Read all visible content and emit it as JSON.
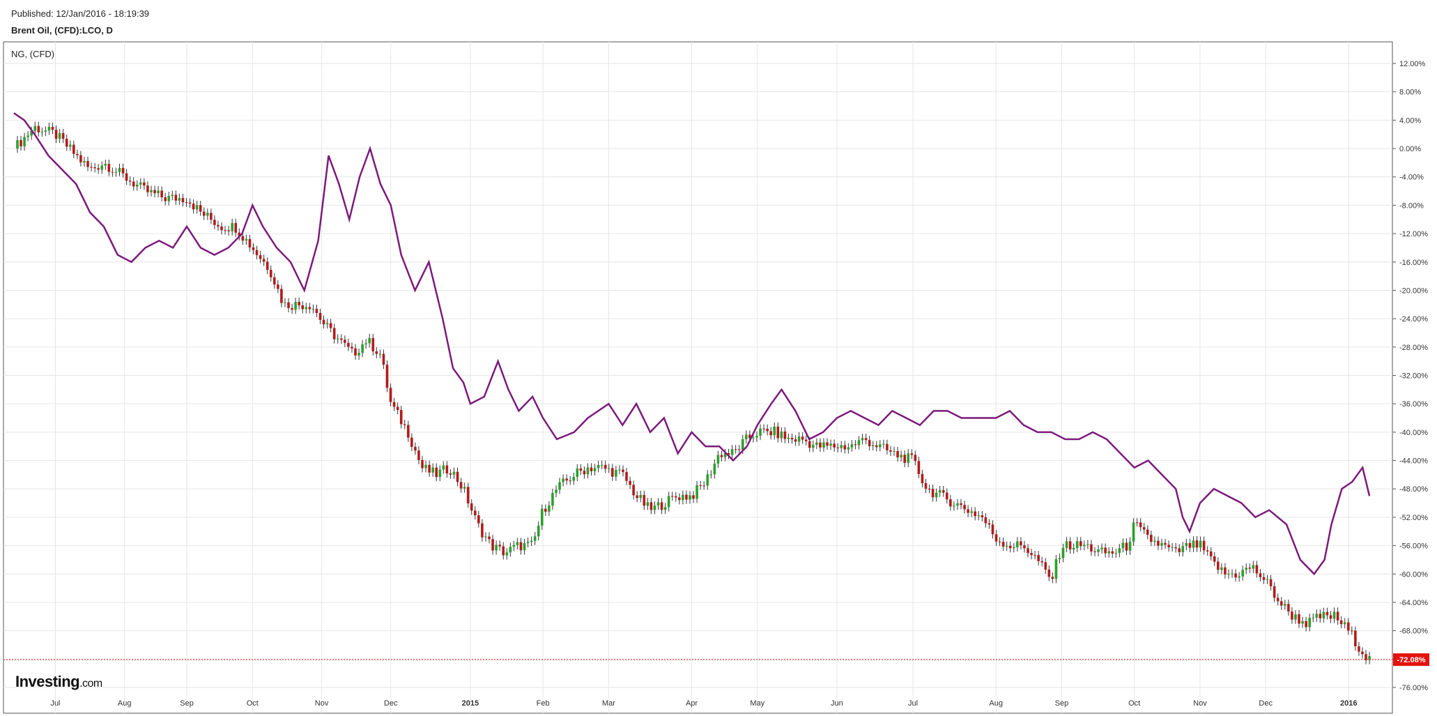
{
  "header": {
    "published": "Published: 12/Jan/2016 - 18:19:39",
    "title": "Brent Oil, (CFD):LCO, D"
  },
  "legend": {
    "overlay_label": "NG,  (CFD)"
  },
  "logo": {
    "brand": "Investing",
    "suffix": ".com"
  },
  "chart_data": {
    "type": "line",
    "title": "Brent Oil, (CFD):LCO, D",
    "ylabel": "",
    "ylim": [
      -78,
      14
    ],
    "y_ticks": [
      "12.00%",
      "8.00%",
      "4.00%",
      "0.00%",
      "-4.00%",
      "-8.00%",
      "-12.00%",
      "-16.00%",
      "-20.00%",
      "-24.00%",
      "-28.00%",
      "-32.00%",
      "-36.00%",
      "-40.00%",
      "-44.00%",
      "-48.00%",
      "-52.00%",
      "-56.00%",
      "-60.00%",
      "-64.00%",
      "-68.00%",
      "-72.00%",
      "-76.00%"
    ],
    "y_tick_values": [
      12,
      8,
      4,
      0,
      -4,
      -8,
      -12,
      -16,
      -20,
      -24,
      -28,
      -32,
      -36,
      -40,
      -44,
      -48,
      -52,
      -56,
      -60,
      -64,
      -68,
      -72,
      -76
    ],
    "x_ticks": [
      "Jul",
      "Aug",
      "Sep",
      "Oct",
      "Nov",
      "Dec",
      "2015",
      "Feb",
      "Mar",
      "Apr",
      "May",
      "Jun",
      "Jul",
      "Aug",
      "Sep",
      "Oct",
      "Nov",
      "Dec",
      "2016"
    ],
    "x_tick_months": [
      0.6,
      1.6,
      2.5,
      3.45,
      4.45,
      5.45,
      6.6,
      7.65,
      8.6,
      9.8,
      10.75,
      11.9,
      13.0,
      14.2,
      15.15,
      16.2,
      17.15,
      18.1,
      19.3
    ],
    "x_range_months": [
      -0.1,
      19.7
    ],
    "current_value_label": "-72.08%",
    "current_value": -72.08,
    "colors": {
      "brent_up": "#2ca02c",
      "brent_down": "#b31b1b",
      "ng_line": "#7b1a7b",
      "current_marker": "#e3120b",
      "grid": "#e6e6e6"
    },
    "series": [
      {
        "name": "Brent Oil",
        "kind": "candlestick",
        "points": [
          [
            0,
            0
          ],
          [
            0.3,
            3
          ],
          [
            0.6,
            2
          ],
          [
            0.9,
            -1
          ],
          [
            1.1,
            -3
          ],
          [
            1.3,
            -2
          ],
          [
            1.6,
            -4
          ],
          [
            1.9,
            -6
          ],
          [
            2.2,
            -7
          ],
          [
            2.5,
            -7
          ],
          [
            2.7,
            -9
          ],
          [
            3.0,
            -11
          ],
          [
            3.2,
            -11
          ],
          [
            3.45,
            -14
          ],
          [
            3.7,
            -17
          ],
          [
            3.9,
            -22
          ],
          [
            4.1,
            -22
          ],
          [
            4.3,
            -22
          ],
          [
            4.5,
            -25
          ],
          [
            4.7,
            -27
          ],
          [
            4.9,
            -29
          ],
          [
            5.1,
            -27
          ],
          [
            5.3,
            -29
          ],
          [
            5.45,
            -36
          ],
          [
            5.7,
            -40
          ],
          [
            5.9,
            -45
          ],
          [
            6.1,
            -46
          ],
          [
            6.3,
            -45
          ],
          [
            6.5,
            -48
          ],
          [
            6.7,
            -53
          ],
          [
            6.9,
            -56
          ],
          [
            7.1,
            -57
          ],
          [
            7.3,
            -56
          ],
          [
            7.5,
            -56
          ],
          [
            7.65,
            -51
          ],
          [
            7.85,
            -48
          ],
          [
            8.1,
            -46
          ],
          [
            8.3,
            -45
          ],
          [
            8.5,
            -45
          ],
          [
            8.8,
            -46
          ],
          [
            9.0,
            -49
          ],
          [
            9.2,
            -51
          ],
          [
            9.4,
            -50
          ],
          [
            9.6,
            -49
          ],
          [
            9.8,
            -49
          ],
          [
            10.0,
            -47
          ],
          [
            10.2,
            -43
          ],
          [
            10.4,
            -43
          ],
          [
            10.6,
            -41
          ],
          [
            10.75,
            -40
          ],
          [
            11.0,
            -40
          ],
          [
            11.2,
            -41
          ],
          [
            11.4,
            -41
          ],
          [
            11.6,
            -42
          ],
          [
            11.9,
            -42
          ],
          [
            12.1,
            -42
          ],
          [
            12.3,
            -41
          ],
          [
            12.5,
            -42
          ],
          [
            12.7,
            -43
          ],
          [
            13.0,
            -44
          ],
          [
            13.2,
            -48
          ],
          [
            13.4,
            -49
          ],
          [
            13.6,
            -50
          ],
          [
            13.8,
            -51
          ],
          [
            14.0,
            -52
          ],
          [
            14.2,
            -55
          ],
          [
            14.4,
            -56
          ],
          [
            14.6,
            -56
          ],
          [
            14.8,
            -58
          ],
          [
            15.0,
            -61
          ],
          [
            15.15,
            -56
          ],
          [
            15.35,
            -56
          ],
          [
            15.5,
            -56
          ],
          [
            15.7,
            -57
          ],
          [
            15.9,
            -57
          ],
          [
            16.1,
            -56
          ],
          [
            16.2,
            -53
          ],
          [
            16.4,
            -55
          ],
          [
            16.6,
            -56
          ],
          [
            16.8,
            -57
          ],
          [
            17.0,
            -56
          ],
          [
            17.15,
            -56
          ],
          [
            17.3,
            -58
          ],
          [
            17.5,
            -60
          ],
          [
            17.7,
            -60
          ],
          [
            17.9,
            -59
          ],
          [
            18.1,
            -61
          ],
          [
            18.3,
            -64
          ],
          [
            18.5,
            -66
          ],
          [
            18.7,
            -67
          ],
          [
            18.9,
            -66
          ],
          [
            19.1,
            -66
          ],
          [
            19.3,
            -68
          ],
          [
            19.5,
            -71
          ],
          [
            19.6,
            -72.08
          ]
        ]
      },
      {
        "name": "NG,  (CFD)",
        "kind": "line",
        "points": [
          [
            0,
            5
          ],
          [
            0.15,
            4
          ],
          [
            0.3,
            2
          ],
          [
            0.5,
            -1
          ],
          [
            0.7,
            -3
          ],
          [
            0.9,
            -5
          ],
          [
            1.1,
            -9
          ],
          [
            1.3,
            -11
          ],
          [
            1.5,
            -15
          ],
          [
            1.7,
            -16
          ],
          [
            1.9,
            -14
          ],
          [
            2.1,
            -13
          ],
          [
            2.3,
            -14
          ],
          [
            2.5,
            -11
          ],
          [
            2.7,
            -14
          ],
          [
            2.9,
            -15
          ],
          [
            3.1,
            -14
          ],
          [
            3.3,
            -12
          ],
          [
            3.45,
            -8
          ],
          [
            3.6,
            -11
          ],
          [
            3.8,
            -14
          ],
          [
            4.0,
            -16
          ],
          [
            4.2,
            -20
          ],
          [
            4.4,
            -13
          ],
          [
            4.55,
            -1
          ],
          [
            4.7,
            -5
          ],
          [
            4.85,
            -10
          ],
          [
            5.0,
            -4
          ],
          [
            5.15,
            0
          ],
          [
            5.3,
            -5
          ],
          [
            5.45,
            -8
          ],
          [
            5.6,
            -15
          ],
          [
            5.8,
            -20
          ],
          [
            6.0,
            -16
          ],
          [
            6.2,
            -24
          ],
          [
            6.35,
            -31
          ],
          [
            6.5,
            -33
          ],
          [
            6.6,
            -36
          ],
          [
            6.8,
            -35
          ],
          [
            7.0,
            -30
          ],
          [
            7.15,
            -34
          ],
          [
            7.3,
            -37
          ],
          [
            7.5,
            -35
          ],
          [
            7.65,
            -38
          ],
          [
            7.85,
            -41
          ],
          [
            8.1,
            -40
          ],
          [
            8.3,
            -38
          ],
          [
            8.6,
            -36
          ],
          [
            8.8,
            -39
          ],
          [
            9.0,
            -36
          ],
          [
            9.2,
            -40
          ],
          [
            9.4,
            -38
          ],
          [
            9.6,
            -43
          ],
          [
            9.8,
            -40
          ],
          [
            10.0,
            -42
          ],
          [
            10.2,
            -42
          ],
          [
            10.4,
            -44
          ],
          [
            10.6,
            -42
          ],
          [
            10.75,
            -39
          ],
          [
            10.95,
            -36
          ],
          [
            11.1,
            -34
          ],
          [
            11.3,
            -37
          ],
          [
            11.5,
            -41
          ],
          [
            11.7,
            -40
          ],
          [
            11.9,
            -38
          ],
          [
            12.1,
            -37
          ],
          [
            12.3,
            -38
          ],
          [
            12.5,
            -39
          ],
          [
            12.7,
            -37
          ],
          [
            12.9,
            -38
          ],
          [
            13.1,
            -39
          ],
          [
            13.3,
            -37
          ],
          [
            13.5,
            -37
          ],
          [
            13.7,
            -38
          ],
          [
            13.9,
            -38
          ],
          [
            14.2,
            -38
          ],
          [
            14.4,
            -37
          ],
          [
            14.6,
            -39
          ],
          [
            14.8,
            -40
          ],
          [
            15.0,
            -40
          ],
          [
            15.2,
            -41
          ],
          [
            15.4,
            -41
          ],
          [
            15.6,
            -40
          ],
          [
            15.8,
            -41
          ],
          [
            16.0,
            -43
          ],
          [
            16.2,
            -45
          ],
          [
            16.4,
            -44
          ],
          [
            16.6,
            -46
          ],
          [
            16.8,
            -48
          ],
          [
            16.9,
            -52
          ],
          [
            17.0,
            -54
          ],
          [
            17.15,
            -50
          ],
          [
            17.35,
            -48
          ],
          [
            17.55,
            -49
          ],
          [
            17.75,
            -50
          ],
          [
            17.95,
            -52
          ],
          [
            18.15,
            -51
          ],
          [
            18.4,
            -53
          ],
          [
            18.6,
            -58
          ],
          [
            18.8,
            -60
          ],
          [
            18.95,
            -58
          ],
          [
            19.05,
            -53
          ],
          [
            19.2,
            -48
          ],
          [
            19.35,
            -47
          ],
          [
            19.5,
            -45
          ],
          [
            19.6,
            -49
          ]
        ]
      }
    ]
  }
}
